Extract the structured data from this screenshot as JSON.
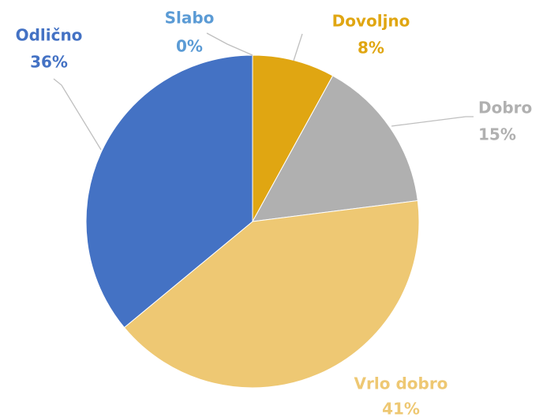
{
  "chart_data": {
    "type": "pie",
    "categories": [
      "Slabo",
      "Dovoljno",
      "Dobro",
      "Vrlo dobro",
      "Odlično"
    ],
    "values": [
      0,
      8,
      15,
      41,
      36
    ],
    "value_labels": [
      "0%",
      "8%",
      "15%",
      "41%",
      "36%"
    ],
    "colors": [
      "#5b9bd5",
      "#e0a612",
      "#b0b0b0",
      "#eec873",
      "#4472c4"
    ]
  }
}
